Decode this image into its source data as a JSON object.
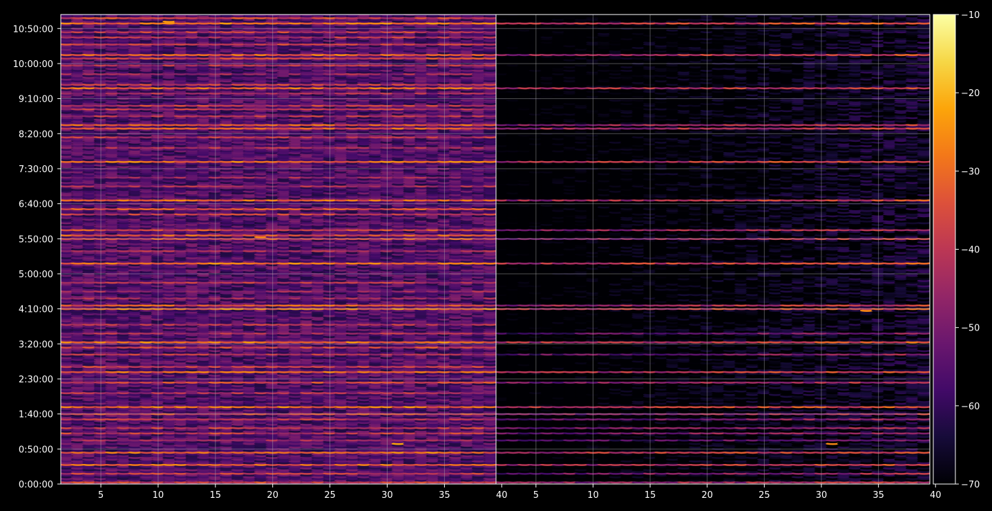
{
  "chart_data": [
    {
      "type": "heatmap",
      "panel": "left",
      "title": "",
      "xlabel": "",
      "ylabel": "",
      "xlim": [
        1.5,
        39.5
      ],
      "ylim": [
        "0:00:00",
        "11:10:00"
      ],
      "x_ticks": [
        "5",
        "10",
        "15",
        "20",
        "25",
        "30",
        "35",
        "40"
      ],
      "y_ticks": [
        "0:00:00",
        "0:50:00",
        "1:40:00",
        "2:30:00",
        "3:20:00",
        "4:10:00",
        "5:00:00",
        "5:50:00",
        "6:40:00",
        "7:30:00",
        "8:20:00",
        "9:10:00",
        "10:00:00",
        "10:50:00"
      ],
      "grid": true,
      "x_columns": 39,
      "row_step": "0:02:30",
      "value_range": [
        -70,
        -10
      ],
      "background_level": -56,
      "hot_rows": [
        {
          "time": "0:02:30",
          "value": -38
        },
        {
          "time": "0:15:00",
          "value": -40
        },
        {
          "time": "0:27:30",
          "value": -32
        },
        {
          "time": "0:45:00",
          "value": -30
        },
        {
          "time": "1:02:30",
          "value": -46
        },
        {
          "time": "1:12:30",
          "value": -40
        },
        {
          "time": "1:20:00",
          "value": -40
        },
        {
          "time": "1:32:30",
          "value": -42
        },
        {
          "time": "1:40:00",
          "value": -38
        },
        {
          "time": "1:50:00",
          "value": -30
        },
        {
          "time": "2:10:00",
          "value": -44
        },
        {
          "time": "2:25:00",
          "value": -38
        },
        {
          "time": "2:40:00",
          "value": -32
        },
        {
          "time": "2:47:30",
          "value": -40
        },
        {
          "time": "3:05:00",
          "value": -42
        },
        {
          "time": "3:15:00",
          "value": -38
        },
        {
          "time": "3:22:30",
          "value": -30
        },
        {
          "time": "3:35:00",
          "value": -44
        },
        {
          "time": "3:47:30",
          "value": -42
        },
        {
          "time": "4:10:00",
          "value": -30
        },
        {
          "time": "4:15:00",
          "value": -34
        },
        {
          "time": "4:25:00",
          "value": -46
        },
        {
          "time": "4:35:00",
          "value": -46
        },
        {
          "time": "4:47:30",
          "value": -42
        },
        {
          "time": "5:15:00",
          "value": -30
        },
        {
          "time": "5:32:30",
          "value": -44
        },
        {
          "time": "5:50:00",
          "value": -36
        },
        {
          "time": "5:55:00",
          "value": -34
        },
        {
          "time": "6:02:30",
          "value": -36
        },
        {
          "time": "6:25:00",
          "value": -40
        },
        {
          "time": "6:32:30",
          "value": -36
        },
        {
          "time": "6:45:00",
          "value": -32
        },
        {
          "time": "7:05:00",
          "value": -44
        },
        {
          "time": "7:17:30",
          "value": -46
        },
        {
          "time": "7:40:00",
          "value": -30
        },
        {
          "time": "8:00:00",
          "value": -44
        },
        {
          "time": "8:15:00",
          "value": -42
        },
        {
          "time": "8:27:30",
          "value": -34
        },
        {
          "time": "8:32:30",
          "value": -34
        },
        {
          "time": "8:45:00",
          "value": -42
        },
        {
          "time": "8:55:00",
          "value": -42
        },
        {
          "time": "9:00:00",
          "value": -40
        },
        {
          "time": "9:17:30",
          "value": -44
        },
        {
          "time": "9:25:00",
          "value": -32
        },
        {
          "time": "9:30:00",
          "value": -40
        },
        {
          "time": "9:45:00",
          "value": -46
        },
        {
          "time": "9:57:30",
          "value": -42
        },
        {
          "time": "10:07:30",
          "value": -38
        },
        {
          "time": "10:12:30",
          "value": -32
        },
        {
          "time": "10:27:30",
          "value": -40
        },
        {
          "time": "10:37:30",
          "value": -42
        },
        {
          "time": "10:45:00",
          "value": -40
        },
        {
          "time": "10:57:30",
          "value": -30
        },
        {
          "time": "11:05:00",
          "value": -38
        }
      ],
      "peak_cells": [
        {
          "x": 16,
          "time": "4:10:00",
          "value": -22
        },
        {
          "x": 31,
          "time": "0:57:30",
          "value": -22
        },
        {
          "x": 11,
          "time": "11:00:00",
          "value": -24
        },
        {
          "x": 19,
          "time": "5:52:30",
          "value": -26
        }
      ]
    },
    {
      "type": "heatmap",
      "panel": "right",
      "title": "",
      "xlabel": "",
      "ylabel": "",
      "xlim": [
        1.5,
        39.5
      ],
      "ylim": [
        "0:00:00",
        "11:10:00"
      ],
      "x_ticks": [
        "5",
        "10",
        "15",
        "20",
        "25",
        "30",
        "35",
        "40"
      ],
      "grid": true,
      "x_columns": 39,
      "row_step": "0:02:30",
      "value_range": [
        -70,
        -10
      ],
      "background_level": -66,
      "intensity_profile": "weak on the left, strengthening toward the right edge",
      "hot_rows": [
        {
          "time": "0:02:30",
          "value": -40
        },
        {
          "time": "0:15:00",
          "value": -44
        },
        {
          "time": "0:27:30",
          "value": -36
        },
        {
          "time": "0:45:00",
          "value": -34
        },
        {
          "time": "1:02:30",
          "value": -50
        },
        {
          "time": "1:12:30",
          "value": -44
        },
        {
          "time": "1:20:00",
          "value": -44
        },
        {
          "time": "1:32:30",
          "value": -46
        },
        {
          "time": "1:40:00",
          "value": -42
        },
        {
          "time": "1:50:00",
          "value": -34
        },
        {
          "time": "2:25:00",
          "value": -42
        },
        {
          "time": "2:40:00",
          "value": -36
        },
        {
          "time": "3:05:00",
          "value": -46
        },
        {
          "time": "3:22:30",
          "value": -34
        },
        {
          "time": "3:35:00",
          "value": -48
        },
        {
          "time": "4:10:00",
          "value": -34
        },
        {
          "time": "4:15:00",
          "value": -38
        },
        {
          "time": "5:15:00",
          "value": -34
        },
        {
          "time": "5:50:00",
          "value": -40
        },
        {
          "time": "6:02:30",
          "value": -40
        },
        {
          "time": "6:45:00",
          "value": -36
        },
        {
          "time": "7:40:00",
          "value": -34
        },
        {
          "time": "8:27:30",
          "value": -38
        },
        {
          "time": "8:32:30",
          "value": -40
        },
        {
          "time": "9:25:00",
          "value": -36
        },
        {
          "time": "10:12:30",
          "value": -36
        },
        {
          "time": "10:57:30",
          "value": -34
        }
      ],
      "peak_cells": [
        {
          "x": 31,
          "time": "0:57:30",
          "value": -26
        },
        {
          "x": 34,
          "time": "4:07:30",
          "value": -26
        },
        {
          "x": 32,
          "time": "10:57:30",
          "value": -28
        }
      ]
    }
  ],
  "colorbar": {
    "colormap": "inferno",
    "range": [
      -70,
      -10
    ],
    "ticks": [
      "−70",
      "−60",
      "−50",
      "−40",
      "−30",
      "−20",
      "−10"
    ],
    "tick_values": [
      -70,
      -60,
      -50,
      -40,
      -30,
      -20,
      -10
    ]
  },
  "colors": {
    "background": "#000000",
    "axis": "#ffffff",
    "grid": "#b0b0b0"
  }
}
